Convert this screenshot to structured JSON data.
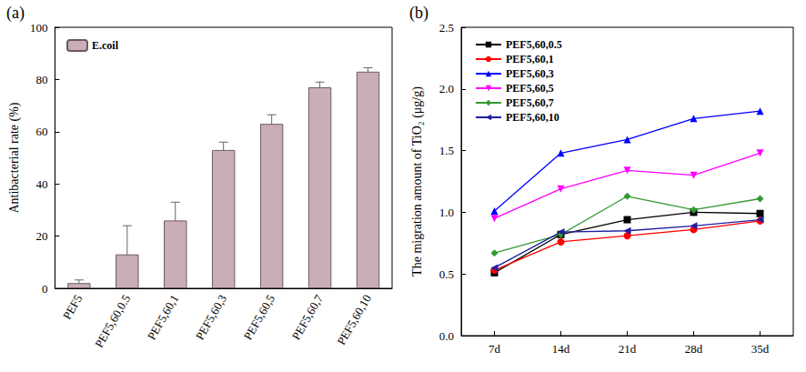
{
  "chart_data": [
    {
      "type": "bar",
      "title": "(a)",
      "y_label": "Antibacterial rate (%)",
      "categories": [
        "PEF5",
        "PEF5,60,0.5",
        "PEF5,60,1",
        "PEF5,60,3",
        "PEF5,60,5",
        "PEF5,60,7",
        "PEF5,60,10"
      ],
      "series": [
        {
          "name": "E.coil",
          "color": "#c9aeb8",
          "values": [
            2,
            13,
            26,
            53,
            63,
            77,
            83
          ],
          "errors": [
            1.2,
            11,
            7,
            3,
            3.5,
            2,
            1.5
          ]
        }
      ],
      "ylim": [
        0,
        100
      ],
      "yticks": [
        0,
        20,
        40,
        60,
        80,
        100
      ],
      "legend": "upper left",
      "grid": false
    },
    {
      "type": "line",
      "title": "(b)",
      "y_label": "The migration amount of TiO₂ (μg/g)",
      "categories": [
        "7d",
        "14d",
        "21d",
        "28d",
        "35d"
      ],
      "series": [
        {
          "name": "PEF5,60,0.5",
          "color": "#000000",
          "marker": "square",
          "values": [
            0.51,
            0.82,
            0.94,
            1.0,
            0.99
          ]
        },
        {
          "name": "PEF5,60,1",
          "color": "#ff0000",
          "marker": "circle",
          "values": [
            0.53,
            0.76,
            0.81,
            0.86,
            0.93
          ]
        },
        {
          "name": "PEF5,60,3",
          "color": "#0000ff",
          "marker": "triangle",
          "values": [
            1.01,
            1.48,
            1.59,
            1.76,
            1.82
          ]
        },
        {
          "name": "PEF5,60,5",
          "color": "#ff00ff",
          "marker": "triangle-down",
          "values": [
            0.95,
            1.19,
            1.34,
            1.3,
            1.48
          ]
        },
        {
          "name": "PEF5,60,7",
          "color": "#339933",
          "marker": "diamond",
          "values": [
            0.67,
            0.82,
            1.13,
            1.02,
            1.11
          ]
        },
        {
          "name": "PEF5,60,10",
          "color": "#1f1f9f",
          "marker": "triangle-left",
          "values": [
            0.55,
            0.84,
            0.85,
            0.89,
            0.94
          ]
        }
      ],
      "ylim": [
        0,
        2.5
      ],
      "yticks": [
        {
          "value": 0,
          "label": "0.0"
        },
        0.5,
        {
          "value": 1,
          "label": "1.0"
        },
        1.5,
        {
          "value": 2,
          "label": "2.0"
        },
        2.5
      ],
      "legend": "upper left",
      "grid": false
    }
  ]
}
